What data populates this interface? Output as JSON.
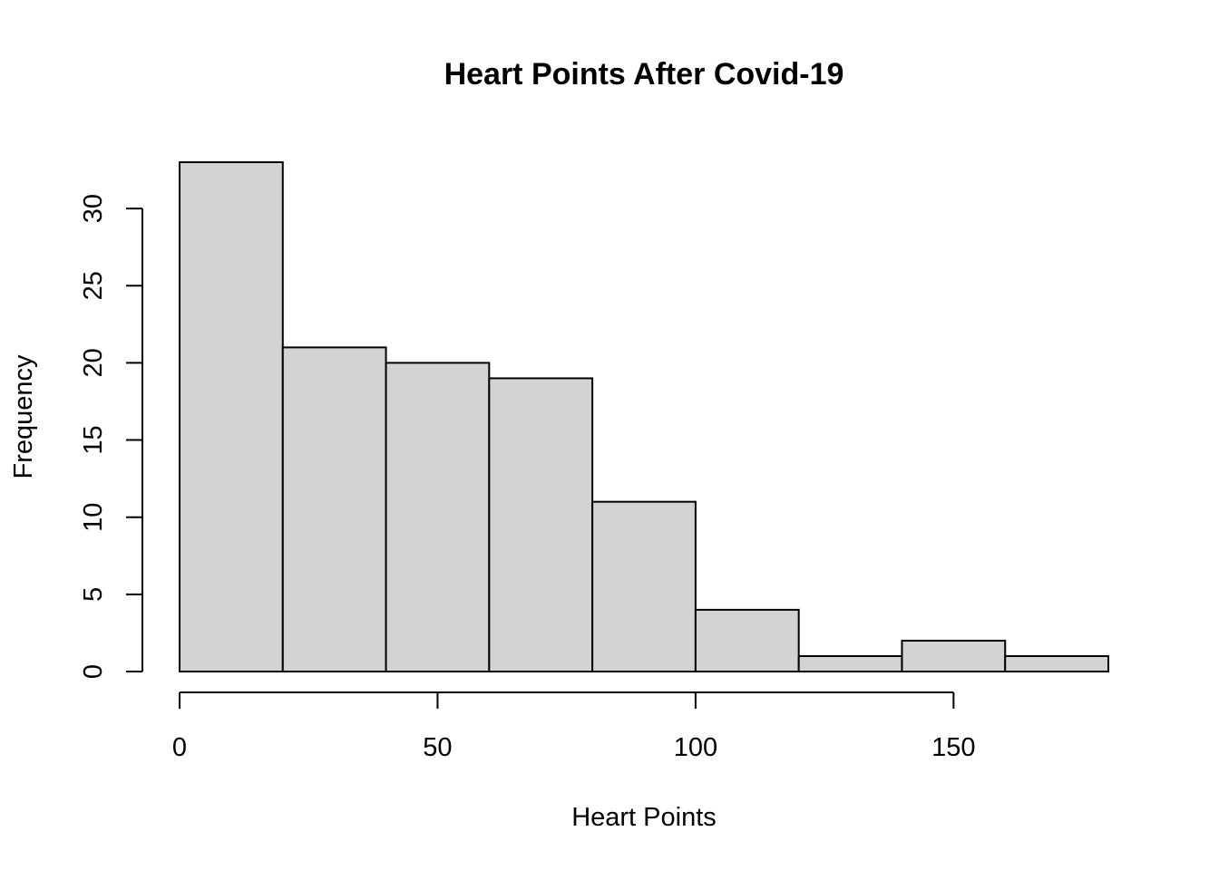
{
  "chart_data": {
    "type": "bar",
    "subtype": "histogram",
    "title": "Heart Points After Covid-19",
    "xlabel": "Heart Points",
    "ylabel": "Frequency",
    "bins": [
      {
        "start": 0,
        "end": 20,
        "count": 33
      },
      {
        "start": 20,
        "end": 40,
        "count": 21
      },
      {
        "start": 40,
        "end": 60,
        "count": 20
      },
      {
        "start": 60,
        "end": 80,
        "count": 19
      },
      {
        "start": 80,
        "end": 100,
        "count": 11
      },
      {
        "start": 100,
        "end": 120,
        "count": 4
      },
      {
        "start": 120,
        "end": 140,
        "count": 1
      },
      {
        "start": 140,
        "end": 160,
        "count": 2
      },
      {
        "start": 160,
        "end": 180,
        "count": 1
      }
    ],
    "xlim": [
      0,
      180
    ],
    "ylim": [
      0,
      33
    ],
    "x_ticks": [
      0,
      50,
      100,
      150
    ],
    "x_tick_labels": [
      "0",
      "50",
      "100",
      "150"
    ],
    "y_ticks": [
      0,
      5,
      10,
      15,
      20,
      25,
      30
    ],
    "y_tick_labels": [
      "0",
      "5",
      "10",
      "15",
      "20",
      "25",
      "30"
    ],
    "bar_color": "#d3d3d3",
    "bar_edge_color": "#000000",
    "grid": false,
    "legend": false
  }
}
